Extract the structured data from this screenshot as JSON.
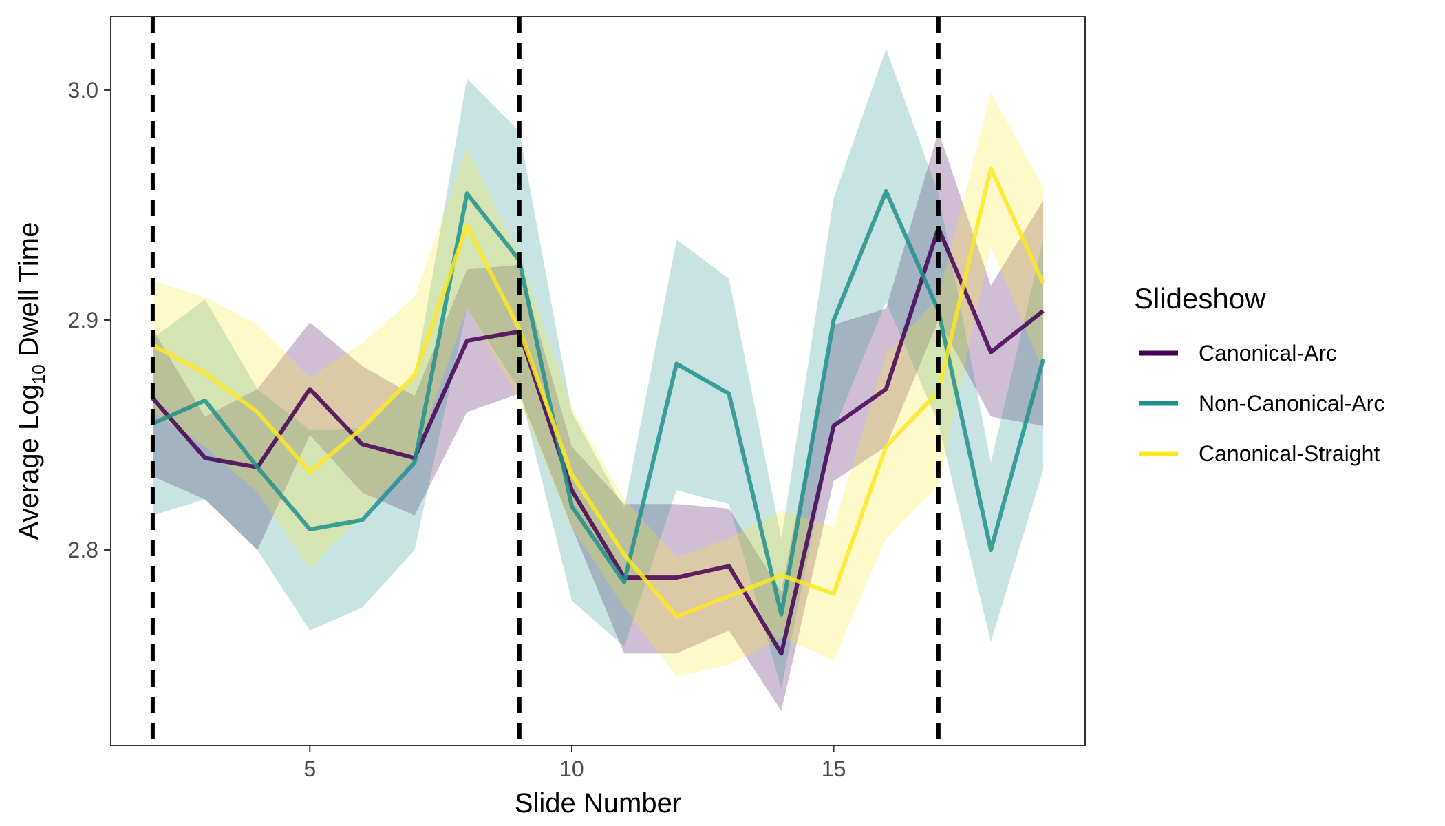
{
  "chart_data": {
    "type": "line",
    "title": "",
    "xlabel": "Slide Number",
    "ylabel": {
      "prefix": "Average  Log",
      "subscript": "10",
      "suffix": " Dwell Time"
    },
    "xlim": [
      1.2,
      19.8
    ],
    "ylim": [
      2.715,
      3.032
    ],
    "x_ticks": [
      5,
      10,
      15
    ],
    "y_ticks": [
      2.8,
      2.9,
      3.0
    ],
    "x_tick_labels": [
      "5",
      "10",
      "15"
    ],
    "y_tick_labels": [
      "2.8",
      "2.9",
      "3.0"
    ],
    "grid": false,
    "vlines": [
      2,
      9,
      17
    ],
    "legend": {
      "title": "Slideshow",
      "position": "right"
    },
    "x": [
      2,
      3,
      4,
      5,
      6,
      7,
      8,
      9,
      10,
      11,
      12,
      13,
      14,
      15,
      16,
      17,
      18,
      19
    ],
    "series": [
      {
        "name": "Canonical-Arc",
        "color": "#440154",
        "values": [
          2.866,
          2.84,
          2.836,
          2.87,
          2.846,
          2.84,
          2.891,
          2.895,
          2.826,
          2.788,
          2.788,
          2.793,
          2.755,
          2.854,
          2.87,
          2.94,
          2.886,
          2.904
        ],
        "lower": [
          2.832,
          2.822,
          2.8,
          2.85,
          2.825,
          2.815,
          2.86,
          2.868,
          2.81,
          2.755,
          2.755,
          2.765,
          2.73,
          2.83,
          2.845,
          2.9,
          2.858,
          2.854
        ],
        "upper": [
          2.896,
          2.858,
          2.87,
          2.899,
          2.88,
          2.867,
          2.922,
          2.924,
          2.845,
          2.82,
          2.82,
          2.818,
          2.782,
          2.898,
          2.905,
          2.982,
          2.915,
          2.952
        ]
      },
      {
        "name": "Non-Canonical-Arc",
        "color": "#21908C",
        "values": [
          2.855,
          2.865,
          2.836,
          2.809,
          2.813,
          2.838,
          2.955,
          2.926,
          2.819,
          2.786,
          2.881,
          2.868,
          2.772,
          2.9,
          2.956,
          2.904,
          2.8,
          2.883
        ],
        "lower": [
          2.815,
          2.822,
          2.8,
          2.765,
          2.775,
          2.8,
          2.905,
          2.87,
          2.778,
          2.758,
          2.826,
          2.82,
          2.74,
          2.852,
          2.908,
          2.855,
          2.76,
          2.835
        ],
        "upper": [
          2.892,
          2.909,
          2.87,
          2.852,
          2.853,
          2.875,
          3.005,
          2.982,
          2.86,
          2.818,
          2.935,
          2.918,
          2.805,
          2.953,
          3.018,
          2.955,
          2.838,
          2.935
        ]
      },
      {
        "name": "Canonical-Straight",
        "color": "#FDE725",
        "values": [
          2.889,
          2.877,
          2.86,
          2.834,
          2.853,
          2.876,
          2.941,
          2.896,
          2.833,
          2.798,
          2.771,
          2.78,
          2.789,
          2.781,
          2.845,
          2.869,
          2.966,
          2.916
        ],
        "lower": [
          2.86,
          2.845,
          2.825,
          2.792,
          2.815,
          2.84,
          2.905,
          2.865,
          2.81,
          2.775,
          2.745,
          2.75,
          2.762,
          2.752,
          2.805,
          2.828,
          2.932,
          2.878
        ],
        "upper": [
          2.917,
          2.91,
          2.898,
          2.875,
          2.89,
          2.91,
          2.975,
          2.928,
          2.862,
          2.822,
          2.797,
          2.805,
          2.817,
          2.81,
          2.885,
          2.91,
          2.999,
          2.958
        ]
      }
    ]
  }
}
